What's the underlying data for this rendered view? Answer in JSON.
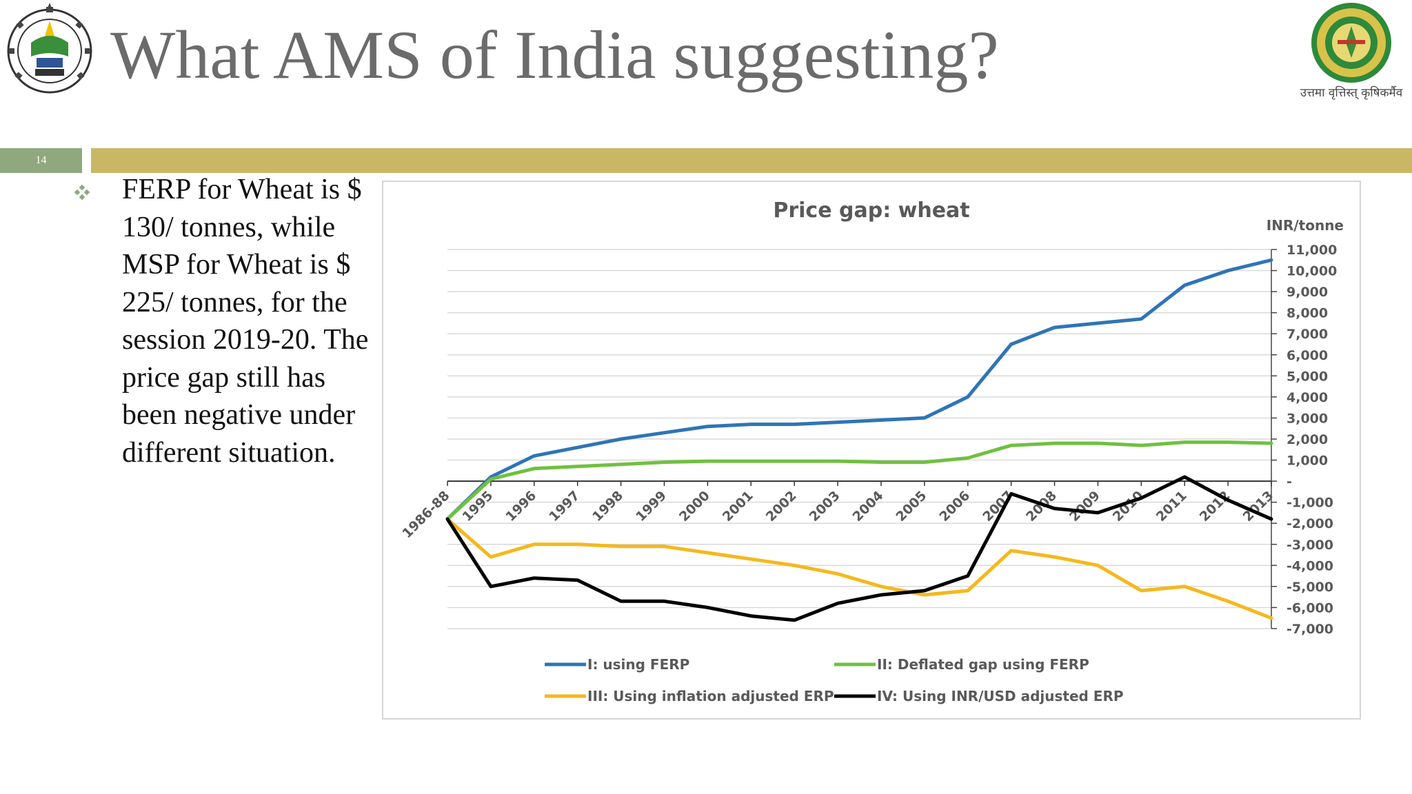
{
  "slide": {
    "title": "What AMS of India suggesting?",
    "slide_number": "14",
    "bullet_text": "FERP for Wheat is $ 130/ tonnes, while MSP for Wheat is $ 225/ tonnes, for the session 2019-20. The price gap still has been negative under different situation.",
    "right_logo_caption": "उत्तमा वृत्तिस्त् कृषिकर्मैव",
    "colors": {
      "title": "#6b6b6b",
      "accent_bar": "#c9b766",
      "slide_num_box": "#8fa87e"
    }
  },
  "chart_data": {
    "type": "line",
    "title": "Price gap: wheat",
    "ylabel": "INR/tonne",
    "ylim": [
      -7000,
      11000
    ],
    "y_ticks": [
      11000,
      10000,
      9000,
      8000,
      7000,
      6000,
      5000,
      4000,
      3000,
      2000,
      1000,
      0,
      -1000,
      -2000,
      -3000,
      -4000,
      -5000,
      -6000,
      -7000
    ],
    "y_tick_labels": [
      "11,000",
      "10,000",
      "9,000",
      "8,000",
      "7,000",
      "6,000",
      "5,000",
      "4,000",
      "3,000",
      "2,000",
      "1,000",
      "-",
      "-1,000",
      "-2,000",
      "-3,000",
      "-4,000",
      "-5,000",
      "-6,000",
      "-7,000"
    ],
    "categories": [
      "1986-88",
      "1995",
      "1996",
      "1997",
      "1998",
      "1999",
      "2000",
      "2001",
      "2002",
      "2003",
      "2004",
      "2005",
      "2006",
      "2007",
      "2008",
      "2009",
      "2010",
      "2011",
      "2012",
      "2013"
    ],
    "grid": true,
    "legend_position": "bottom",
    "series": [
      {
        "name": "I: using FERP",
        "color": "#2e75b6",
        "values": [
          -1800,
          200,
          1200,
          1600,
          2000,
          2300,
          2600,
          2700,
          2700,
          2800,
          2900,
          3000,
          4000,
          6500,
          7300,
          7500,
          7700,
          9300,
          10000,
          10500
        ]
      },
      {
        "name": "II: Deflated gap using FERP",
        "color": "#70c040",
        "values": [
          -1800,
          100,
          600,
          700,
          800,
          900,
          950,
          950,
          950,
          950,
          900,
          900,
          1100,
          1700,
          1800,
          1800,
          1700,
          1850,
          1850,
          1800
        ]
      },
      {
        "name": "III: Using inflation adjusted ERP",
        "color": "#f5b81c",
        "values": [
          -1800,
          -3600,
          -3000,
          -3000,
          -3100,
          -3100,
          -3400,
          -3700,
          -4000,
          -4400,
          -5000,
          -5400,
          -5200,
          -3300,
          -3600,
          -4000,
          -5200,
          -5000,
          -5700,
          -6500
        ]
      },
      {
        "name": "IV: Using INR/USD adjusted ERP",
        "color": "#000000",
        "values": [
          -1800,
          -5000,
          -4600,
          -4700,
          -5700,
          -5700,
          -6000,
          -6400,
          -6600,
          -5800,
          -5400,
          -5200,
          -4500,
          -600,
          -1300,
          -1500,
          -800,
          200,
          -900,
          -1800
        ]
      }
    ]
  }
}
